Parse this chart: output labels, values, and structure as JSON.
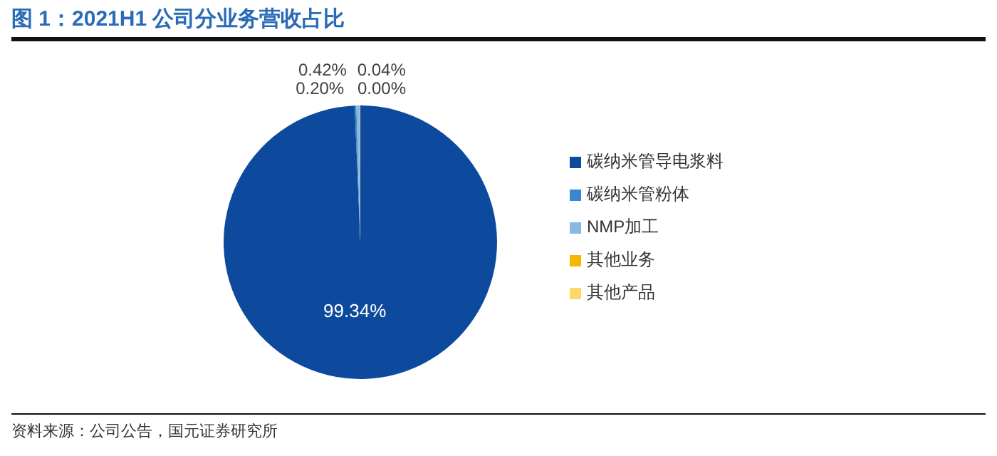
{
  "chart_data": {
    "type": "pie",
    "title": "图 1：2021H1 公司分业务营收占比",
    "categories": [
      "碳纳米管导电浆料",
      "碳纳米管粉体",
      "NMP加工",
      "其他业务",
      "其他产品"
    ],
    "values": [
      99.34,
      0.2,
      0.42,
      0.04,
      0.0
    ],
    "value_labels": [
      "99.34%",
      "0.20%",
      "0.42%",
      "0.04%",
      "0.00%"
    ],
    "colors": [
      "#0d4a9e",
      "#3a87d0",
      "#8ab8e0",
      "#f5b800",
      "#fbd86a"
    ],
    "legend": "right",
    "annotations": [
      "资料来源：公司公告，国元证券研究所"
    ]
  }
}
